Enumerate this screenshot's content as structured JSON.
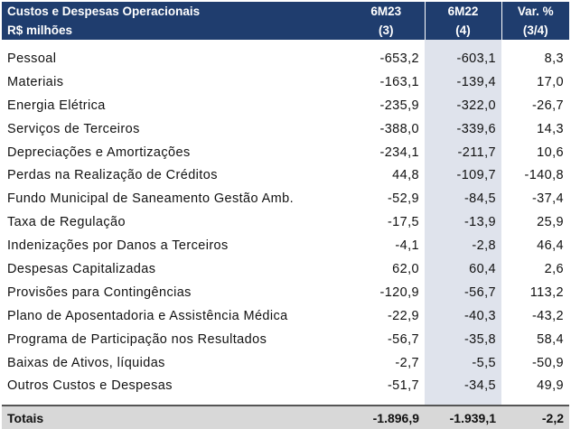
{
  "header": {
    "title": "Custos e Despesas Operacionais",
    "unit": "R$ milhões",
    "columns": [
      {
        "label": "6M23",
        "note": "(3)"
      },
      {
        "label": "6M22",
        "note": "(4)"
      },
      {
        "label": "Var. %",
        "note": "(3/4)"
      }
    ]
  },
  "rows": [
    {
      "label": "Pessoal",
      "v1": "-653,2",
      "v2": "-603,1",
      "v3": "8,3"
    },
    {
      "label": "Materiais",
      "v1": "-163,1",
      "v2": "-139,4",
      "v3": "17,0"
    },
    {
      "label": "Energia Elétrica",
      "v1": "-235,9",
      "v2": "-322,0",
      "v3": "-26,7"
    },
    {
      "label": "Serviços de Terceiros",
      "v1": "-388,0",
      "v2": "-339,6",
      "v3": "14,3"
    },
    {
      "label": "Depreciações e Amortizações",
      "v1": "-234,1",
      "v2": "-211,7",
      "v3": "10,6"
    },
    {
      "label": "Perdas na Realização de Créditos",
      "v1": "44,8",
      "v2": "-109,7",
      "v3": "-140,8"
    },
    {
      "label": "Fundo Municipal de Saneamento Gestão Amb.",
      "v1": "-52,9",
      "v2": "-84,5",
      "v3": "-37,4"
    },
    {
      "label": "Taxa de Regulação",
      "v1": "-17,5",
      "v2": "-13,9",
      "v3": "25,9"
    },
    {
      "label": "Indenizações por Danos a Terceiros",
      "v1": "-4,1",
      "v2": "-2,8",
      "v3": "46,4"
    },
    {
      "label": "Despesas Capitalizadas",
      "v1": "62,0",
      "v2": "60,4",
      "v3": "2,6"
    },
    {
      "label": "Provisões para Contingências",
      "v1": "-120,9",
      "v2": "-56,7",
      "v3": "113,2"
    },
    {
      "label": "Plano de Aposentadoria e Assistência Médica",
      "v1": "-22,9",
      "v2": "-40,3",
      "v3": "-43,2"
    },
    {
      "label": "Programa de Participação nos Resultados",
      "v1": "-56,7",
      "v2": "-35,8",
      "v3": "58,4"
    },
    {
      "label": "Baixas de Ativos, líquidas",
      "v1": "-2,7",
      "v2": "-5,5",
      "v3": "-50,9"
    },
    {
      "label": "Outros Custos e Despesas",
      "v1": "-51,7",
      "v2": "-34,5",
      "v3": "49,9"
    }
  ],
  "total": {
    "label": "Totais",
    "v1": "-1.896,9",
    "v2": "-1.939,1",
    "v3": "-2,2"
  },
  "colors": {
    "header_bg": "#1f3d6e",
    "shade_col": "#dfe3ec",
    "total_bg": "#d8d8d8"
  }
}
